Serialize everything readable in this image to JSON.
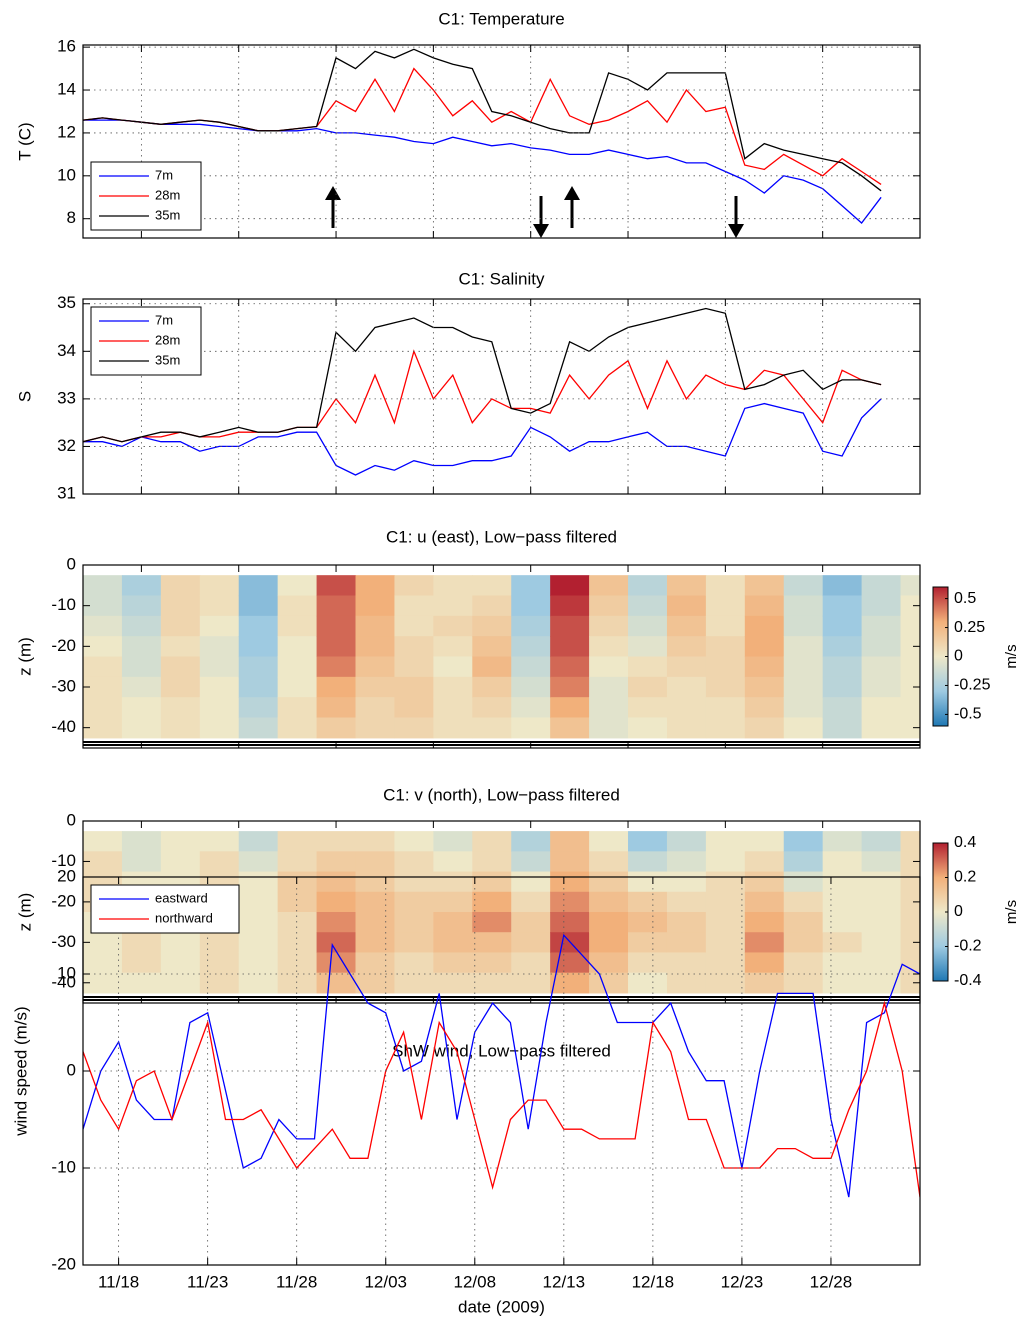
{
  "chart_data": [
    {
      "type": "line",
      "title": "C1: Temperature",
      "ylabel": "T (C)",
      "x": [
        "11/15",
        "11/16",
        "11/17",
        "11/18",
        "11/19",
        "11/20",
        "11/21",
        "11/22",
        "11/23",
        "11/24",
        "11/25",
        "11/26",
        "11/27",
        "11/28",
        "11/29",
        "11/30",
        "12/01",
        "12/02",
        "12/03",
        "12/04",
        "12/05",
        "12/06",
        "12/07",
        "12/08",
        "12/09",
        "12/10",
        "12/11",
        "12/12",
        "12/13",
        "12/14",
        "12/15",
        "12/16",
        "12/17",
        "12/18",
        "12/19",
        "12/20",
        "12/21",
        "12/22",
        "12/23",
        "12/24",
        "12/25",
        "12/26"
      ],
      "series": [
        {
          "name": "7m",
          "color": "#0000ff",
          "values": [
            12.6,
            12.6,
            12.6,
            12.5,
            12.4,
            12.4,
            12.4,
            12.3,
            12.2,
            12.1,
            12.1,
            12.1,
            12.2,
            12.0,
            12.0,
            11.9,
            11.8,
            11.6,
            11.5,
            11.8,
            11.6,
            11.4,
            11.5,
            11.3,
            11.2,
            11.0,
            11.0,
            11.2,
            11.0,
            10.8,
            10.9,
            10.6,
            10.6,
            10.2,
            9.8,
            9.2,
            10.0,
            9.8,
            9.4,
            8.6,
            7.8,
            9.0
          ]
        },
        {
          "name": "28m",
          "color": "#ff0000",
          "values": [
            12.6,
            12.7,
            12.6,
            12.5,
            12.4,
            12.5,
            12.6,
            12.5,
            12.3,
            12.1,
            12.1,
            12.2,
            12.3,
            13.5,
            13.0,
            14.5,
            13.0,
            15.0,
            14.0,
            12.8,
            13.5,
            12.5,
            13.0,
            12.5,
            14.5,
            12.8,
            12.4,
            12.6,
            13.0,
            13.5,
            12.5,
            14.0,
            13.0,
            13.2,
            10.5,
            10.3,
            11.0,
            10.5,
            10.0,
            10.8,
            10.2,
            9.6
          ]
        },
        {
          "name": "35m",
          "color": "#000000",
          "values": [
            12.6,
            12.7,
            12.6,
            12.5,
            12.4,
            12.5,
            12.6,
            12.5,
            12.3,
            12.1,
            12.1,
            12.2,
            12.3,
            15.5,
            15.0,
            15.8,
            15.5,
            15.9,
            15.5,
            15.2,
            15.0,
            13.0,
            12.8,
            12.5,
            12.2,
            12.0,
            12.0,
            14.8,
            14.5,
            14.0,
            14.8,
            14.8,
            14.8,
            14.8,
            10.8,
            11.5,
            11.2,
            11.0,
            10.8,
            10.6,
            10.0,
            9.3
          ]
        }
      ],
      "xlim": [
        "11/15",
        "12/28"
      ],
      "xticks": [
        "11/18",
        "11/23",
        "11/28",
        "12/03",
        "12/08",
        "12/13",
        "12/18",
        "12/23",
        "12/28"
      ],
      "xticklabels": false,
      "ylim": [
        7.1,
        16.1
      ],
      "yticks": [
        8,
        10,
        12,
        14,
        16
      ],
      "grid": true,
      "legend": "lower left"
    },
    {
      "type": "line",
      "title": "C1: Salinity",
      "ylabel": "S",
      "x": [
        "11/15",
        "11/16",
        "11/17",
        "11/18",
        "11/19",
        "11/20",
        "11/21",
        "11/22",
        "11/23",
        "11/24",
        "11/25",
        "11/26",
        "11/27",
        "11/28",
        "11/29",
        "11/30",
        "12/01",
        "12/02",
        "12/03",
        "12/04",
        "12/05",
        "12/06",
        "12/07",
        "12/08",
        "12/09",
        "12/10",
        "12/11",
        "12/12",
        "12/13",
        "12/14",
        "12/15",
        "12/16",
        "12/17",
        "12/18",
        "12/19",
        "12/20",
        "12/21",
        "12/22",
        "12/23",
        "12/24",
        "12/25",
        "12/26"
      ],
      "series": [
        {
          "name": "7m",
          "color": "#0000ff",
          "values": [
            32.1,
            32.1,
            32.0,
            32.2,
            32.1,
            32.1,
            31.9,
            32.0,
            32.0,
            32.2,
            32.2,
            32.3,
            32.3,
            31.6,
            31.4,
            31.6,
            31.5,
            31.7,
            31.6,
            31.6,
            31.7,
            31.7,
            31.8,
            32.4,
            32.2,
            31.9,
            32.1,
            32.1,
            32.2,
            32.3,
            32.0,
            32.0,
            31.9,
            31.8,
            32.8,
            32.9,
            32.8,
            32.7,
            31.9,
            31.8,
            32.6,
            33.0
          ]
        },
        {
          "name": "28m",
          "color": "#ff0000",
          "values": [
            32.1,
            32.2,
            32.1,
            32.2,
            32.2,
            32.3,
            32.2,
            32.2,
            32.3,
            32.3,
            32.3,
            32.4,
            32.4,
            33.0,
            32.5,
            33.5,
            32.5,
            34.0,
            33.0,
            33.5,
            32.5,
            33.0,
            32.8,
            32.8,
            32.7,
            33.5,
            33.0,
            33.5,
            33.8,
            32.8,
            33.8,
            33.0,
            33.5,
            33.3,
            33.2,
            33.6,
            33.5,
            33.0,
            32.5,
            33.6,
            33.4,
            33.3
          ]
        },
        {
          "name": "35m",
          "color": "#000000",
          "values": [
            32.1,
            32.2,
            32.1,
            32.2,
            32.3,
            32.3,
            32.2,
            32.3,
            32.4,
            32.3,
            32.3,
            32.4,
            32.4,
            34.4,
            34.0,
            34.5,
            34.6,
            34.7,
            34.5,
            34.5,
            34.3,
            34.2,
            32.8,
            32.7,
            32.9,
            34.2,
            34.0,
            34.3,
            34.5,
            34.6,
            34.7,
            34.8,
            34.9,
            34.8,
            33.2,
            33.3,
            33.5,
            33.6,
            33.2,
            33.4,
            33.4,
            33.3
          ]
        }
      ],
      "xlim": [
        "11/15",
        "12/28"
      ],
      "xticks": [
        "11/18",
        "11/23",
        "11/28",
        "12/03",
        "12/08",
        "12/13",
        "12/18",
        "12/23",
        "12/28"
      ],
      "xticklabels": false,
      "ylim": [
        31,
        35.1
      ],
      "yticks": [
        31,
        32,
        33,
        34,
        35
      ],
      "grid": true,
      "legend": "upper left"
    },
    {
      "type": "heatmap",
      "title": "C1: u (east), Low−pass filtered",
      "ylabel": "z (m)",
      "colorbar_label": "m/s",
      "x": [
        "11/16",
        "11/18",
        "11/20",
        "11/22",
        "11/24",
        "11/26",
        "11/28",
        "11/30",
        "12/02",
        "12/04",
        "12/06",
        "12/08",
        "12/10",
        "12/12",
        "12/14",
        "12/16",
        "12/18",
        "12/20",
        "12/22",
        "12/24",
        "12/26",
        "12/28"
      ],
      "y": [
        -5,
        -10,
        -15,
        -20,
        -25,
        -30,
        -35,
        -40
      ],
      "values": [
        [
          -0.1,
          -0.1,
          -0.05,
          0,
          0.05,
          0.05,
          0.05,
          0.05
        ],
        [
          -0.25,
          -0.2,
          -0.15,
          -0.1,
          -0.1,
          -0.05,
          0,
          0
        ],
        [
          0.1,
          0.1,
          0.1,
          0.05,
          0.1,
          0.1,
          0.05,
          0.05
        ],
        [
          0.05,
          0.05,
          0,
          -0.05,
          -0.05,
          0,
          0,
          0
        ],
        [
          -0.35,
          -0.35,
          -0.3,
          -0.3,
          -0.25,
          -0.25,
          -0.2,
          -0.15
        ],
        [
          0,
          0.05,
          0.05,
          0,
          0,
          0,
          0.05,
          0.05
        ],
        [
          0.5,
          0.45,
          0.45,
          0.45,
          0.4,
          0.3,
          0.25,
          0.15
        ],
        [
          0.3,
          0.3,
          0.25,
          0.25,
          0.2,
          0.15,
          0.1,
          0.1
        ],
        [
          0.1,
          0.05,
          0.05,
          0.1,
          0.1,
          0.15,
          0.15,
          0.1
        ],
        [
          0.05,
          0.05,
          0.1,
          0.05,
          0,
          0.05,
          0.05,
          0.05
        ],
        [
          0.05,
          0.1,
          0.15,
          0.2,
          0.25,
          0.15,
          0.1,
          0.05
        ],
        [
          -0.3,
          -0.3,
          -0.25,
          -0.2,
          -0.15,
          -0.1,
          -0.05,
          0
        ],
        [
          0.6,
          0.55,
          0.5,
          0.5,
          0.45,
          0.4,
          0.3,
          0.2
        ],
        [
          0.2,
          0.15,
          0.1,
          0.05,
          0,
          -0.05,
          -0.05,
          -0.05
        ],
        [
          -0.2,
          -0.15,
          -0.1,
          -0.05,
          0.05,
          0.1,
          0.05,
          0
        ],
        [
          0.2,
          0.25,
          0.2,
          0.15,
          0.1,
          0.05,
          0.05,
          0.05
        ],
        [
          0.05,
          0.05,
          0.05,
          0.1,
          0.1,
          0.1,
          0.05,
          0.05
        ],
        [
          0.2,
          0.25,
          0.3,
          0.3,
          0.25,
          0.2,
          0.15,
          0.1
        ],
        [
          -0.15,
          -0.1,
          -0.1,
          -0.05,
          -0.05,
          -0.05,
          -0.05,
          0
        ],
        [
          -0.35,
          -0.3,
          -0.3,
          -0.25,
          -0.2,
          -0.2,
          -0.15,
          -0.15
        ],
        [
          -0.15,
          -0.15,
          -0.1,
          -0.1,
          -0.05,
          -0.05,
          0,
          0
        ],
        [
          -0.05,
          0,
          0,
          0,
          0,
          0,
          0,
          0
        ]
      ],
      "colormap": [
        "#1f78b4",
        "#9ecae1",
        "#eee8c8",
        "#f2b07a",
        "#b22030"
      ],
      "clim": [
        -0.6,
        0.6
      ],
      "cticks": [
        -0.5,
        -0.25,
        0,
        0.25,
        0.5
      ],
      "xlim": [
        "11/15",
        "12/28"
      ],
      "xticks": [
        "11/18",
        "11/23",
        "11/28",
        "12/03",
        "12/08",
        "12/13",
        "12/18",
        "12/23",
        "12/28"
      ],
      "xticklabels": false,
      "ylim": [
        -45,
        0
      ],
      "yticks": [
        -40,
        -30,
        -20,
        -10,
        0
      ]
    },
    {
      "type": "heatmap",
      "title": "C1: v (north), Low−pass filtered",
      "ylabel": "z (m)",
      "colorbar_label": "m/s",
      "x": [
        "11/16",
        "11/18",
        "11/20",
        "11/22",
        "11/24",
        "11/26",
        "11/28",
        "11/30",
        "12/02",
        "12/04",
        "12/06",
        "12/08",
        "12/10",
        "12/12",
        "12/14",
        "12/16",
        "12/18",
        "12/20",
        "12/22",
        "12/24",
        "12/26",
        "12/28"
      ],
      "y": [
        -5,
        -10,
        -15,
        -20,
        -25,
        -30,
        -35,
        -40
      ],
      "values": [
        [
          0,
          0.05,
          0.05,
          0.05,
          0,
          0,
          0,
          0
        ],
        [
          -0.05,
          -0.05,
          0,
          0.05,
          0.05,
          0.05,
          0.05,
          0
        ],
        [
          0,
          0,
          0,
          0,
          0,
          0,
          0,
          0
        ],
        [
          0,
          0.05,
          0.05,
          0.05,
          0.05,
          0.05,
          0.05,
          0.05
        ],
        [
          -0.1,
          -0.05,
          0,
          0,
          0,
          0,
          0,
          0
        ],
        [
          0.05,
          0.05,
          0.1,
          0.1,
          0.05,
          0.05,
          0.05,
          0.05
        ],
        [
          0.05,
          0.1,
          0.15,
          0.2,
          0.25,
          0.3,
          0.25,
          0.15
        ],
        [
          0.05,
          0.1,
          0.1,
          0.15,
          0.15,
          0.15,
          0.1,
          0.1
        ],
        [
          0,
          0.05,
          0.05,
          0.1,
          0.1,
          0.1,
          0.05,
          0.05
        ],
        [
          -0.05,
          0,
          0.05,
          0.1,
          0.15,
          0.15,
          0.1,
          0.05
        ],
        [
          0.05,
          0.05,
          0.1,
          0.2,
          0.25,
          0.15,
          0.1,
          0.05
        ],
        [
          -0.15,
          -0.1,
          0,
          0.05,
          0.1,
          0.1,
          0.05,
          0.05
        ],
        [
          0.15,
          0.15,
          0.2,
          0.25,
          0.3,
          0.35,
          0.3,
          0.2
        ],
        [
          0,
          0.05,
          0.1,
          0.15,
          0.2,
          0.2,
          0.15,
          0.1
        ],
        [
          -0.2,
          -0.1,
          0,
          0.1,
          0.15,
          0.1,
          0.05,
          0
        ],
        [
          -0.1,
          -0.05,
          0,
          0.05,
          0.1,
          0.1,
          0.05,
          0.05
        ],
        [
          0,
          0,
          0.05,
          0.05,
          0.05,
          0.05,
          0.05,
          0.05
        ],
        [
          0,
          0.05,
          0.1,
          0.15,
          0.2,
          0.25,
          0.2,
          0.1
        ],
        [
          -0.2,
          -0.15,
          -0.05,
          0.05,
          0.1,
          0.1,
          0.05,
          0.05
        ],
        [
          -0.05,
          0,
          0,
          0,
          0,
          0.05,
          0,
          0
        ],
        [
          -0.1,
          -0.05,
          0,
          0,
          0,
          0,
          0,
          0
        ],
        [
          0.05,
          0.05,
          0.05,
          0.05,
          0.05,
          0.05,
          0.05,
          0.05
        ]
      ],
      "colormap": [
        "#1f78b4",
        "#9ecae1",
        "#eee8c8",
        "#f2b07a",
        "#b22030"
      ],
      "clim": [
        -0.4,
        0.4
      ],
      "cticks": [
        -0.4,
        -0.2,
        0,
        0.2,
        0.4
      ],
      "xlim": [
        "11/15",
        "12/28"
      ],
      "xticks": [
        "11/18",
        "11/23",
        "11/28",
        "12/03",
        "12/08",
        "12/13",
        "12/18",
        "12/23",
        "12/28"
      ],
      "xticklabels": false,
      "ylim": [
        -45,
        0
      ],
      "yticks": [
        -40,
        -30,
        -20,
        -10,
        0
      ]
    },
    {
      "type": "line",
      "title": "ShW wind, Low−pass filtered",
      "ylabel": "wind speed (m/s)",
      "xlabel": "date (2009)",
      "x": [
        "11/16",
        "11/17",
        "11/18",
        "11/19",
        "11/20",
        "11/21",
        "11/22",
        "11/23",
        "11/24",
        "11/25",
        "11/26",
        "11/27",
        "11/28",
        "11/29",
        "11/30",
        "12/01",
        "12/02",
        "12/03",
        "12/04",
        "12/05",
        "12/06",
        "12/07",
        "12/08",
        "12/09",
        "12/10",
        "12/11",
        "12/12",
        "12/13",
        "12/14",
        "12/15",
        "12/16",
        "12/17",
        "12/18",
        "12/19",
        "12/20",
        "12/21",
        "12/22",
        "12/23",
        "12/24",
        "12/25",
        "12/26",
        "12/27",
        "12/28",
        "12/29",
        "12/30",
        "12/31",
        "01/01",
        "01/02"
      ],
      "series": [
        {
          "name": "eastward",
          "color": "#0000ff",
          "values": [
            -6,
            0,
            3,
            -3,
            -5,
            -5,
            5,
            6,
            -2,
            -10,
            -9,
            -5,
            -7,
            -7,
            13,
            10,
            7,
            6,
            0,
            1,
            8,
            -5,
            4,
            7,
            5,
            -6,
            5,
            14,
            12,
            10,
            5,
            5,
            5,
            7,
            2,
            -1,
            -1,
            -10,
            0,
            8,
            8,
            8,
            -5,
            -13,
            5,
            6,
            11,
            10
          ]
        },
        {
          "name": "northward",
          "color": "#ff0000",
          "values": [
            2,
            -3,
            -6,
            -1,
            0,
            -5,
            0,
            5,
            -5,
            -5,
            -4,
            -7,
            -10,
            -8,
            -6,
            -9,
            -9,
            0,
            4,
            -5,
            5,
            2,
            -5,
            -12,
            -5,
            -3,
            -3,
            -6,
            -6,
            -7,
            -7,
            -7,
            5,
            2,
            -5,
            -5,
            -10,
            -10,
            -10,
            -8,
            -8,
            -9,
            -9,
            -4,
            0,
            7,
            0,
            -13
          ]
        }
      ],
      "xlim": [
        "11/16",
        "01/02"
      ],
      "xticks": [
        "11/18",
        "11/23",
        "11/28",
        "12/03",
        "12/08",
        "12/13",
        "12/18",
        "12/23",
        "12/28"
      ],
      "xticklabels": true,
      "ylim": [
        -20,
        20
      ],
      "yticks": [
        -20,
        -10,
        0,
        10,
        20
      ],
      "grid": true,
      "legend": "upper left"
    }
  ]
}
